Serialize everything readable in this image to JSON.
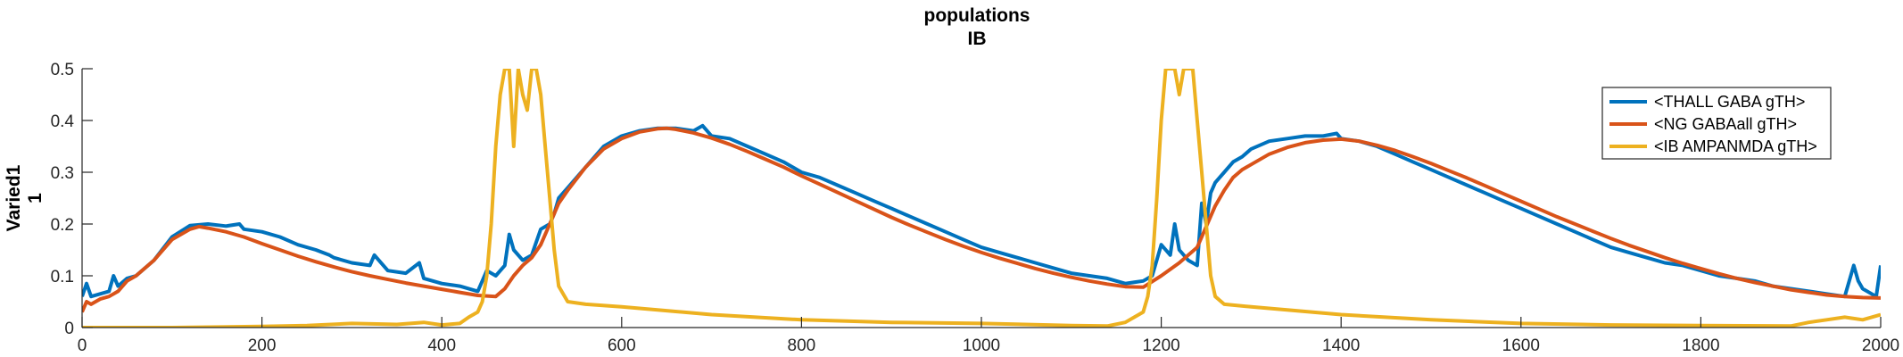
{
  "chart_data": {
    "type": "line",
    "title": [
      "populations",
      "IB"
    ],
    "ylabel": [
      "Varied1",
      "1"
    ],
    "xlabel": "",
    "xlim": [
      0,
      2000
    ],
    "ylim": [
      0,
      0.5
    ],
    "xticks": [
      0,
      200,
      400,
      600,
      800,
      1000,
      1200,
      1400,
      1600,
      1800,
      2000
    ],
    "xtick_labels": [
      "0",
      "200",
      "400",
      "600",
      "800",
      "1000",
      "1200",
      "1400",
      "1600",
      "1800",
      "2000"
    ],
    "yticks": [
      0,
      0.1,
      0.2,
      0.3,
      0.4,
      0.5
    ],
    "ytick_labels": [
      "0",
      "0.1",
      "0.2",
      "0.3",
      "0.4",
      "0.5"
    ],
    "grid": false,
    "legend_position": "top-right",
    "series": [
      {
        "name": "<THALL GABA gTH>",
        "color": "#0072BD",
        "x": [
          0,
          5,
          10,
          20,
          30,
          35,
          40,
          50,
          60,
          80,
          100,
          120,
          140,
          160,
          175,
          180,
          200,
          220,
          240,
          260,
          275,
          280,
          300,
          320,
          325,
          340,
          360,
          375,
          380,
          400,
          420,
          440,
          445,
          450,
          460,
          470,
          475,
          480,
          490,
          500,
          510,
          520,
          525,
          530,
          540,
          560,
          580,
          600,
          620,
          640,
          660,
          680,
          690,
          700,
          720,
          740,
          760,
          780,
          800,
          820,
          840,
          860,
          880,
          900,
          920,
          940,
          960,
          980,
          1000,
          1020,
          1040,
          1060,
          1080,
          1100,
          1120,
          1140,
          1160,
          1180,
          1190,
          1200,
          1210,
          1215,
          1220,
          1230,
          1240,
          1245,
          1250,
          1255,
          1260,
          1270,
          1280,
          1290,
          1300,
          1320,
          1340,
          1360,
          1380,
          1395,
          1400,
          1420,
          1440,
          1460,
          1480,
          1500,
          1520,
          1540,
          1560,
          1580,
          1600,
          1620,
          1640,
          1660,
          1680,
          1700,
          1720,
          1740,
          1760,
          1780,
          1800,
          1820,
          1840,
          1860,
          1880,
          1900,
          1920,
          1940,
          1960,
          1970,
          1975,
          1980,
          1990,
          1995,
          2000
        ],
        "y": [
          0.06,
          0.085,
          0.06,
          0.065,
          0.07,
          0.1,
          0.08,
          0.095,
          0.1,
          0.13,
          0.175,
          0.197,
          0.2,
          0.196,
          0.2,
          0.19,
          0.185,
          0.175,
          0.16,
          0.15,
          0.14,
          0.135,
          0.125,
          0.12,
          0.14,
          0.11,
          0.105,
          0.125,
          0.095,
          0.085,
          0.08,
          0.07,
          0.09,
          0.11,
          0.1,
          0.12,
          0.18,
          0.15,
          0.13,
          0.14,
          0.19,
          0.2,
          0.22,
          0.25,
          0.27,
          0.31,
          0.35,
          0.37,
          0.38,
          0.385,
          0.385,
          0.38,
          0.39,
          0.37,
          0.365,
          0.35,
          0.335,
          0.32,
          0.3,
          0.29,
          0.275,
          0.26,
          0.245,
          0.23,
          0.215,
          0.2,
          0.185,
          0.17,
          0.155,
          0.145,
          0.135,
          0.125,
          0.115,
          0.105,
          0.1,
          0.095,
          0.085,
          0.09,
          0.1,
          0.16,
          0.14,
          0.2,
          0.15,
          0.13,
          0.12,
          0.24,
          0.2,
          0.26,
          0.28,
          0.3,
          0.32,
          0.33,
          0.345,
          0.36,
          0.365,
          0.37,
          0.37,
          0.375,
          0.365,
          0.36,
          0.35,
          0.335,
          0.32,
          0.305,
          0.29,
          0.275,
          0.26,
          0.245,
          0.23,
          0.215,
          0.2,
          0.185,
          0.17,
          0.155,
          0.145,
          0.135,
          0.125,
          0.12,
          0.11,
          0.1,
          0.095,
          0.09,
          0.08,
          0.075,
          0.07,
          0.065,
          0.06,
          0.12,
          0.09,
          0.075,
          0.065,
          0.06,
          0.12
        ]
      },
      {
        "name": "<NG GABAall gTH>",
        "color": "#D95319",
        "x": [
          0,
          5,
          10,
          20,
          30,
          40,
          50,
          60,
          80,
          100,
          120,
          130,
          140,
          160,
          180,
          200,
          220,
          240,
          260,
          280,
          300,
          320,
          340,
          360,
          380,
          400,
          420,
          440,
          460,
          470,
          480,
          490,
          500,
          510,
          520,
          530,
          540,
          560,
          580,
          600,
          620,
          640,
          650,
          660,
          680,
          700,
          720,
          740,
          760,
          780,
          800,
          820,
          840,
          860,
          880,
          900,
          920,
          940,
          960,
          980,
          1000,
          1020,
          1040,
          1060,
          1080,
          1100,
          1120,
          1140,
          1160,
          1180,
          1200,
          1220,
          1240,
          1260,
          1270,
          1280,
          1290,
          1300,
          1320,
          1340,
          1360,
          1380,
          1400,
          1420,
          1440,
          1460,
          1480,
          1500,
          1520,
          1540,
          1560,
          1580,
          1600,
          1620,
          1640,
          1660,
          1680,
          1700,
          1720,
          1740,
          1760,
          1780,
          1800,
          1820,
          1840,
          1860,
          1880,
          1900,
          1920,
          1940,
          1960,
          1980,
          2000
        ],
        "y": [
          0.03,
          0.05,
          0.045,
          0.055,
          0.06,
          0.07,
          0.09,
          0.1,
          0.13,
          0.17,
          0.19,
          0.195,
          0.192,
          0.185,
          0.175,
          0.162,
          0.15,
          0.138,
          0.127,
          0.117,
          0.108,
          0.1,
          0.093,
          0.086,
          0.08,
          0.074,
          0.068,
          0.062,
          0.06,
          0.075,
          0.1,
          0.12,
          0.135,
          0.16,
          0.2,
          0.24,
          0.265,
          0.31,
          0.345,
          0.365,
          0.378,
          0.384,
          0.385,
          0.383,
          0.376,
          0.366,
          0.354,
          0.34,
          0.325,
          0.31,
          0.293,
          0.277,
          0.261,
          0.245,
          0.229,
          0.213,
          0.198,
          0.184,
          0.17,
          0.157,
          0.145,
          0.134,
          0.124,
          0.114,
          0.105,
          0.097,
          0.09,
          0.084,
          0.079,
          0.078,
          0.1,
          0.125,
          0.155,
          0.235,
          0.265,
          0.29,
          0.305,
          0.315,
          0.335,
          0.348,
          0.357,
          0.362,
          0.364,
          0.36,
          0.352,
          0.342,
          0.33,
          0.317,
          0.303,
          0.289,
          0.274,
          0.259,
          0.244,
          0.229,
          0.214,
          0.2,
          0.186,
          0.172,
          0.159,
          0.147,
          0.135,
          0.124,
          0.114,
          0.104,
          0.095,
          0.087,
          0.08,
          0.073,
          0.068,
          0.063,
          0.06,
          0.058,
          0.057
        ]
      },
      {
        "name": "<IB AMPANMDA gTH>",
        "color": "#EDB120",
        "x": [
          0,
          100,
          200,
          250,
          300,
          350,
          380,
          400,
          420,
          430,
          440,
          445,
          450,
          455,
          460,
          465,
          470,
          475,
          480,
          485,
          490,
          495,
          500,
          505,
          510,
          515,
          520,
          525,
          530,
          540,
          560,
          600,
          700,
          800,
          900,
          1000,
          1100,
          1140,
          1160,
          1170,
          1180,
          1185,
          1190,
          1195,
          1200,
          1205,
          1210,
          1215,
          1220,
          1225,
          1230,
          1235,
          1240,
          1245,
          1250,
          1255,
          1260,
          1270,
          1300,
          1400,
          1500,
          1600,
          1700,
          1800,
          1900,
          1920,
          1940,
          1960,
          1980,
          2000
        ],
        "y": [
          0.0,
          0.0,
          0.002,
          0.004,
          0.008,
          0.006,
          0.01,
          0.005,
          0.008,
          0.02,
          0.03,
          0.05,
          0.1,
          0.2,
          0.35,
          0.45,
          0.5,
          0.5,
          0.35,
          0.5,
          0.45,
          0.42,
          0.5,
          0.5,
          0.45,
          0.35,
          0.25,
          0.15,
          0.08,
          0.05,
          0.045,
          0.04,
          0.025,
          0.015,
          0.01,
          0.008,
          0.004,
          0.003,
          0.01,
          0.02,
          0.03,
          0.06,
          0.12,
          0.25,
          0.4,
          0.5,
          0.5,
          0.5,
          0.45,
          0.5,
          0.5,
          0.5,
          0.4,
          0.3,
          0.2,
          0.1,
          0.06,
          0.045,
          0.04,
          0.025,
          0.015,
          0.008,
          0.005,
          0.004,
          0.003,
          0.01,
          0.015,
          0.02,
          0.015,
          0.025
        ]
      }
    ]
  }
}
